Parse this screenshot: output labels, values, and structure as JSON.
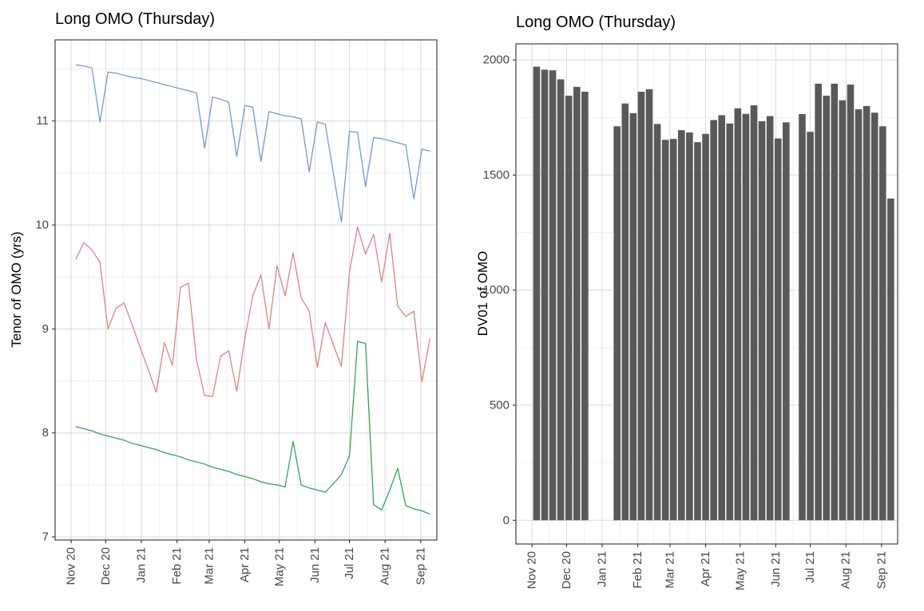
{
  "page": {
    "background": "#ffffff"
  },
  "chart_data": [
    {
      "type": "line",
      "title": "Long OMO (Thursday)",
      "xlabel": "",
      "ylabel": "Tenor of OMO (yrs)",
      "legend": "none",
      "grid": true,
      "ylim": [
        6.97,
        11.78
      ],
      "y_ticks": [
        7,
        8,
        9,
        10,
        11
      ],
      "x_ticks": [
        {
          "date": "2020-11-01",
          "label": "Nov 20"
        },
        {
          "date": "2020-12-01",
          "label": "Dec 20"
        },
        {
          "date": "2021-01-01",
          "label": "Jan 21"
        },
        {
          "date": "2021-02-01",
          "label": "Feb 21"
        },
        {
          "date": "2021-03-01",
          "label": "Mar 21"
        },
        {
          "date": "2021-04-01",
          "label": "Apr 21"
        },
        {
          "date": "2021-05-01",
          "label": "May 21"
        },
        {
          "date": "2021-06-01",
          "label": "Jun 21"
        },
        {
          "date": "2021-07-01",
          "label": "Jul 21"
        },
        {
          "date": "2021-08-01",
          "label": "Aug 21"
        },
        {
          "date": "2021-09-01",
          "label": "Sep 21"
        }
      ],
      "x": [
        "2020-11-05",
        "2020-11-12",
        "2020-11-19",
        "2020-11-26",
        "2020-12-03",
        "2020-12-10",
        "2020-12-17",
        "2020-12-24",
        "2020-12-31",
        "2021-01-07",
        "2021-01-14",
        "2021-01-21",
        "2021-01-28",
        "2021-02-04",
        "2021-02-11",
        "2021-02-18",
        "2021-02-25",
        "2021-03-04",
        "2021-03-11",
        "2021-03-18",
        "2021-03-25",
        "2021-04-01",
        "2021-04-08",
        "2021-04-15",
        "2021-04-22",
        "2021-04-29",
        "2021-05-06",
        "2021-05-13",
        "2021-05-20",
        "2021-05-27",
        "2021-06-03",
        "2021-06-10",
        "2021-06-17",
        "2021-06-24",
        "2021-07-01",
        "2021-07-08",
        "2021-07-15",
        "2021-07-22",
        "2021-07-29",
        "2021-08-05",
        "2021-08-12",
        "2021-08-19",
        "2021-08-26",
        "2021-09-02",
        "2021-09-09"
      ],
      "series": [
        {
          "name": "blue-line",
          "color": "#7296C8",
          "values": [
            11.54,
            11.53,
            11.51,
            10.99,
            11.47,
            11.46,
            11.44,
            11.42,
            11.41,
            11.39,
            11.37,
            11.35,
            11.33,
            11.31,
            11.29,
            11.27,
            10.74,
            11.23,
            11.21,
            11.18,
            10.66,
            11.15,
            11.13,
            10.61,
            11.09,
            11.07,
            11.05,
            11.04,
            11.02,
            10.51,
            10.99,
            10.97,
            10.5,
            10.03,
            10.9,
            10.89,
            10.37,
            10.84,
            10.83,
            10.81,
            10.79,
            10.77,
            10.25,
            10.73,
            10.71
          ]
        },
        {
          "name": "red-line",
          "color": "#D6837D",
          "values": [
            9.67,
            9.83,
            9.76,
            9.64,
            9.0,
            9.2,
            9.25,
            9.04,
            8.82,
            8.61,
            8.39,
            8.87,
            8.65,
            9.4,
            9.44,
            8.7,
            8.36,
            8.35,
            8.74,
            8.79,
            8.4,
            8.91,
            9.32,
            9.52,
            9.0,
            9.61,
            9.32,
            9.73,
            9.3,
            9.17,
            8.63,
            9.06,
            8.85,
            8.64,
            9.55,
            9.98,
            9.72,
            9.91,
            9.45,
            9.92,
            9.22,
            9.12,
            9.17,
            8.49,
            8.91
          ]
        },
        {
          "name": "green-line",
          "color": "#2EA14E",
          "values": [
            8.06,
            8.04,
            8.02,
            7.99,
            7.97,
            7.95,
            7.93,
            7.9,
            7.88,
            7.86,
            7.84,
            7.81,
            7.79,
            7.77,
            7.74,
            7.72,
            7.7,
            7.67,
            7.65,
            7.63,
            7.6,
            7.58,
            7.56,
            7.53,
            7.51,
            7.5,
            7.48,
            7.92,
            7.5,
            7.47,
            7.45,
            7.43,
            7.51,
            7.6,
            7.78,
            8.88,
            8.86,
            7.31,
            7.26,
            7.45,
            7.66,
            7.3,
            7.27,
            7.25,
            7.22
          ]
        }
      ]
    },
    {
      "type": "bar",
      "title": "Long OMO (Thursday)",
      "xlabel": "",
      "ylabel": "DV01 of OMO",
      "legend": "none",
      "grid": true,
      "bar_color": "#595959",
      "ylim": [
        -103,
        2070
      ],
      "y_ticks": [
        0,
        500,
        1000,
        1500,
        2000
      ],
      "x_ticks": [
        {
          "date": "2020-11-01",
          "label": "Nov 20"
        },
        {
          "date": "2020-12-01",
          "label": "Dec 20"
        },
        {
          "date": "2021-01-01",
          "label": "Jan 21"
        },
        {
          "date": "2021-02-01",
          "label": "Feb 21"
        },
        {
          "date": "2021-03-01",
          "label": "Mar 21"
        },
        {
          "date": "2021-04-01",
          "label": "Apr 21"
        },
        {
          "date": "2021-05-01",
          "label": "May 21"
        },
        {
          "date": "2021-06-01",
          "label": "Jun 21"
        },
        {
          "date": "2021-07-01",
          "label": "Jul 21"
        },
        {
          "date": "2021-08-01",
          "label": "Aug 21"
        },
        {
          "date": "2021-09-01",
          "label": "Sep 21"
        }
      ],
      "x": [
        "2020-11-05",
        "2020-11-12",
        "2020-11-19",
        "2020-11-26",
        "2020-12-03",
        "2020-12-10",
        "2020-12-17",
        "2020-12-24",
        "2020-12-31",
        "2021-01-07",
        "2021-01-14",
        "2021-01-21",
        "2021-01-28",
        "2021-02-04",
        "2021-02-11",
        "2021-02-18",
        "2021-02-25",
        "2021-03-04",
        "2021-03-11",
        "2021-03-18",
        "2021-03-25",
        "2021-04-01",
        "2021-04-08",
        "2021-04-15",
        "2021-04-22",
        "2021-04-29",
        "2021-05-06",
        "2021-05-13",
        "2021-05-20",
        "2021-05-27",
        "2021-06-03",
        "2021-06-10",
        "2021-06-17",
        "2021-06-24",
        "2021-07-01",
        "2021-07-08",
        "2021-07-15",
        "2021-07-22",
        "2021-07-29",
        "2021-08-05",
        "2021-08-12",
        "2021-08-19",
        "2021-08-26",
        "2021-09-02",
        "2021-09-09"
      ],
      "values": [
        1971,
        1958,
        1955,
        1916,
        1845,
        1883,
        1862,
        null,
        null,
        null,
        1712,
        1811,
        1769,
        1862,
        1873,
        1722,
        1653,
        1657,
        1695,
        1685,
        1643,
        1679,
        1739,
        1760,
        1724,
        1790,
        1766,
        1803,
        1734,
        1756,
        1659,
        1729,
        null,
        1765,
        1688,
        1897,
        1845,
        1897,
        1825,
        1893,
        1786,
        1800,
        1771,
        1712,
        1398
      ]
    }
  ],
  "style": {
    "panel_border": "#303030",
    "grid_major": "#DBDBDB",
    "grid_minor": "#F0F0F0",
    "tick_color": "#333333",
    "axis_text": "#474747"
  }
}
